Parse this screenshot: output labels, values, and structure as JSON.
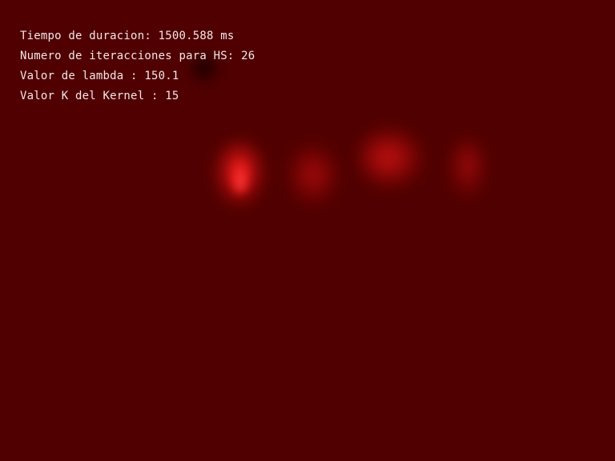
{
  "overlay": {
    "duration": "Tiempo de duracion: 1500.588 ms",
    "iterations": "Numero de iteracciones para HS: 26",
    "lambda": "Valor de lambda : 150.1",
    "kernel": "Valor K del Kernel : 15"
  },
  "colors": {
    "background": "#500000",
    "highlight": "#ff1a1a",
    "text": "#f2e6e6"
  }
}
